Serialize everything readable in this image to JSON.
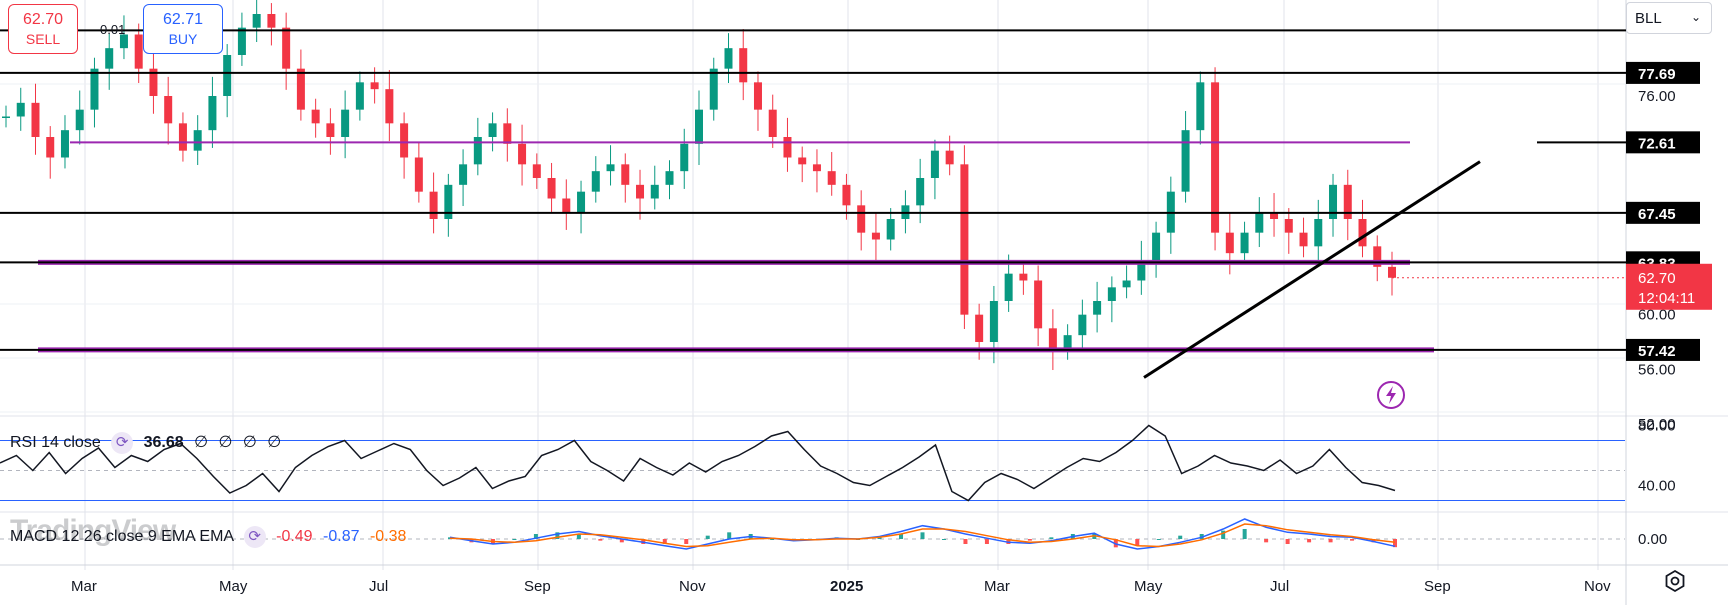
{
  "toolbar": {
    "sell_price": "62.70",
    "sell_label": "SELL",
    "buy_price": "62.71",
    "buy_label": "BUY",
    "spread": "0.01",
    "symbol": "BLL"
  },
  "watermark": "TradingView",
  "colors": {
    "up": "#089981",
    "down": "#f23645",
    "purple": "#9c27b0",
    "black": "#000000",
    "rsi_band": "#2962ff",
    "macd_line": "#2962ff",
    "signal_line": "#ff6d00",
    "last_price_bg": "#f23645"
  },
  "chart_data": [
    {
      "type": "candlestick",
      "x_ticks": [
        "Mar",
        "May",
        "Jul",
        "Sep",
        "Nov",
        "2025",
        "Mar",
        "May",
        "Jul",
        "Sep",
        "Nov"
      ],
      "y_ticks": [
        "76.00",
        "60.00",
        "56.00",
        "52.00"
      ],
      "ylim": [
        52,
        82
      ],
      "grid": true,
      "approx_closes": [
        74.5,
        75.5,
        73.0,
        71.5,
        73.5,
        75.0,
        78.0,
        79.5,
        80.5,
        78.0,
        76.0,
        74.0,
        72.0,
        73.5,
        76.0,
        79.0,
        81.0,
        82.0,
        81.0,
        78.0,
        75.0,
        74.0,
        73.0,
        75.0,
        77.0,
        76.5,
        74.0,
        71.5,
        69.0,
        67.0,
        69.5,
        71.0,
        73.0,
        74.0,
        72.5,
        71.0,
        70.0,
        68.5,
        67.5,
        69.0,
        70.5,
        71.0,
        69.5,
        68.5,
        69.5,
        70.5,
        72.5,
        75.0,
        78.0,
        79.5,
        77.0,
        75.0,
        73.0,
        71.5,
        71.0,
        70.5,
        69.5,
        68.0,
        66.0,
        65.5,
        67.0,
        68.0,
        70.0,
        72.0,
        71.0,
        60.0,
        58.0,
        61.0,
        63.0,
        62.5,
        59.0,
        57.5,
        58.5,
        60.0,
        61.0,
        62.0,
        62.5,
        64.0,
        66.0,
        69.0,
        73.5,
        77.0,
        66.0,
        64.5,
        66.0,
        67.5,
        67.0,
        66.0,
        65.0,
        67.0,
        69.5,
        67.0,
        65.0,
        63.5,
        62.7
      ],
      "last_price": "62.70",
      "countdown": "12:04:11",
      "horizontal_levels": [
        {
          "label": "",
          "value": 80.8,
          "color": "black"
        },
        {
          "label": "77.69",
          "value": 77.69,
          "color": "black"
        },
        {
          "label": "72.61",
          "value": 72.61,
          "color": "purple"
        },
        {
          "label": "67.45",
          "value": 67.45,
          "color": "black"
        },
        {
          "label": "63.83",
          "value": 63.83,
          "color": "black+purple"
        },
        {
          "label": "57.42",
          "value": 57.42,
          "color": "black+purple"
        }
      ],
      "trend_line": {
        "from": [
          "2025-05",
          55.4
        ],
        "to": [
          "2025-09",
          71.2
        ]
      }
    },
    {
      "type": "line",
      "name": "RSI 14 close",
      "legend": {
        "name": "RSI 14 close",
        "value": "36.68",
        "extras": [
          "∅",
          "∅",
          "∅",
          "∅"
        ]
      },
      "y_ticks": [
        "80.00",
        "40.00"
      ],
      "bands": [
        70,
        50,
        30
      ],
      "ylim": [
        25,
        85
      ],
      "values": [
        55,
        60,
        50,
        62,
        48,
        58,
        65,
        52,
        60,
        56,
        64,
        68,
        58,
        46,
        35,
        40,
        48,
        36,
        52,
        60,
        66,
        70,
        58,
        63,
        68,
        64,
        50,
        40,
        45,
        52,
        38,
        43,
        46,
        60,
        64,
        70,
        56,
        50,
        43,
        58,
        52,
        47,
        55,
        49,
        56,
        60,
        66,
        73,
        76,
        64,
        53,
        48,
        42,
        40,
        46,
        52,
        59,
        67,
        36,
        30,
        42,
        48,
        44,
        38,
        45,
        52,
        58,
        56,
        62,
        70,
        80,
        73,
        48,
        53,
        60,
        55,
        53,
        50,
        57,
        48,
        53,
        64,
        52,
        42,
        40,
        36.68
      ]
    },
    {
      "type": "line",
      "name": "MACD 12 26 close 9 EMA EMA",
      "legend": {
        "name": "MACD 12 26 close 9 EMA EMA",
        "histogram": "-0.49",
        "macd": "-0.87",
        "signal": "-0.38"
      },
      "y_ticks": [
        "0.00"
      ],
      "ylim": [
        -3,
        3
      ],
      "macd": [
        0.2,
        -0.2,
        -0.6,
        -0.4,
        0.1,
        0.6,
        0.9,
        0.4,
        0.0,
        -0.4,
        -0.8,
        -1.2,
        -0.6,
        0.0,
        0.3,
        0.1,
        -0.2,
        -0.1,
        0.1,
        0.0,
        0.3,
        0.9,
        1.6,
        1.2,
        0.6,
        0.1,
        -0.4,
        -0.5,
        -0.2,
        0.3,
        0.7,
        -0.6,
        -1.2,
        -0.9,
        -0.4,
        0.2,
        1.2,
        2.4,
        1.4,
        0.8,
        0.6,
        0.3,
        0.2,
        -0.3,
        -0.87
      ],
      "signal": [
        0.1,
        0.0,
        -0.3,
        -0.4,
        -0.2,
        0.2,
        0.6,
        0.5,
        0.2,
        -0.1,
        -0.5,
        -0.9,
        -0.8,
        -0.4,
        0.0,
        0.1,
        -0.1,
        -0.1,
        0.0,
        0.0,
        0.2,
        0.6,
        1.2,
        1.2,
        0.9,
        0.4,
        -0.1,
        -0.4,
        -0.3,
        0.0,
        0.4,
        -0.1,
        -0.8,
        -0.9,
        -0.6,
        -0.1,
        0.7,
        1.8,
        1.6,
        1.1,
        0.8,
        0.5,
        0.3,
        -0.1,
        -0.38
      ]
    }
  ]
}
